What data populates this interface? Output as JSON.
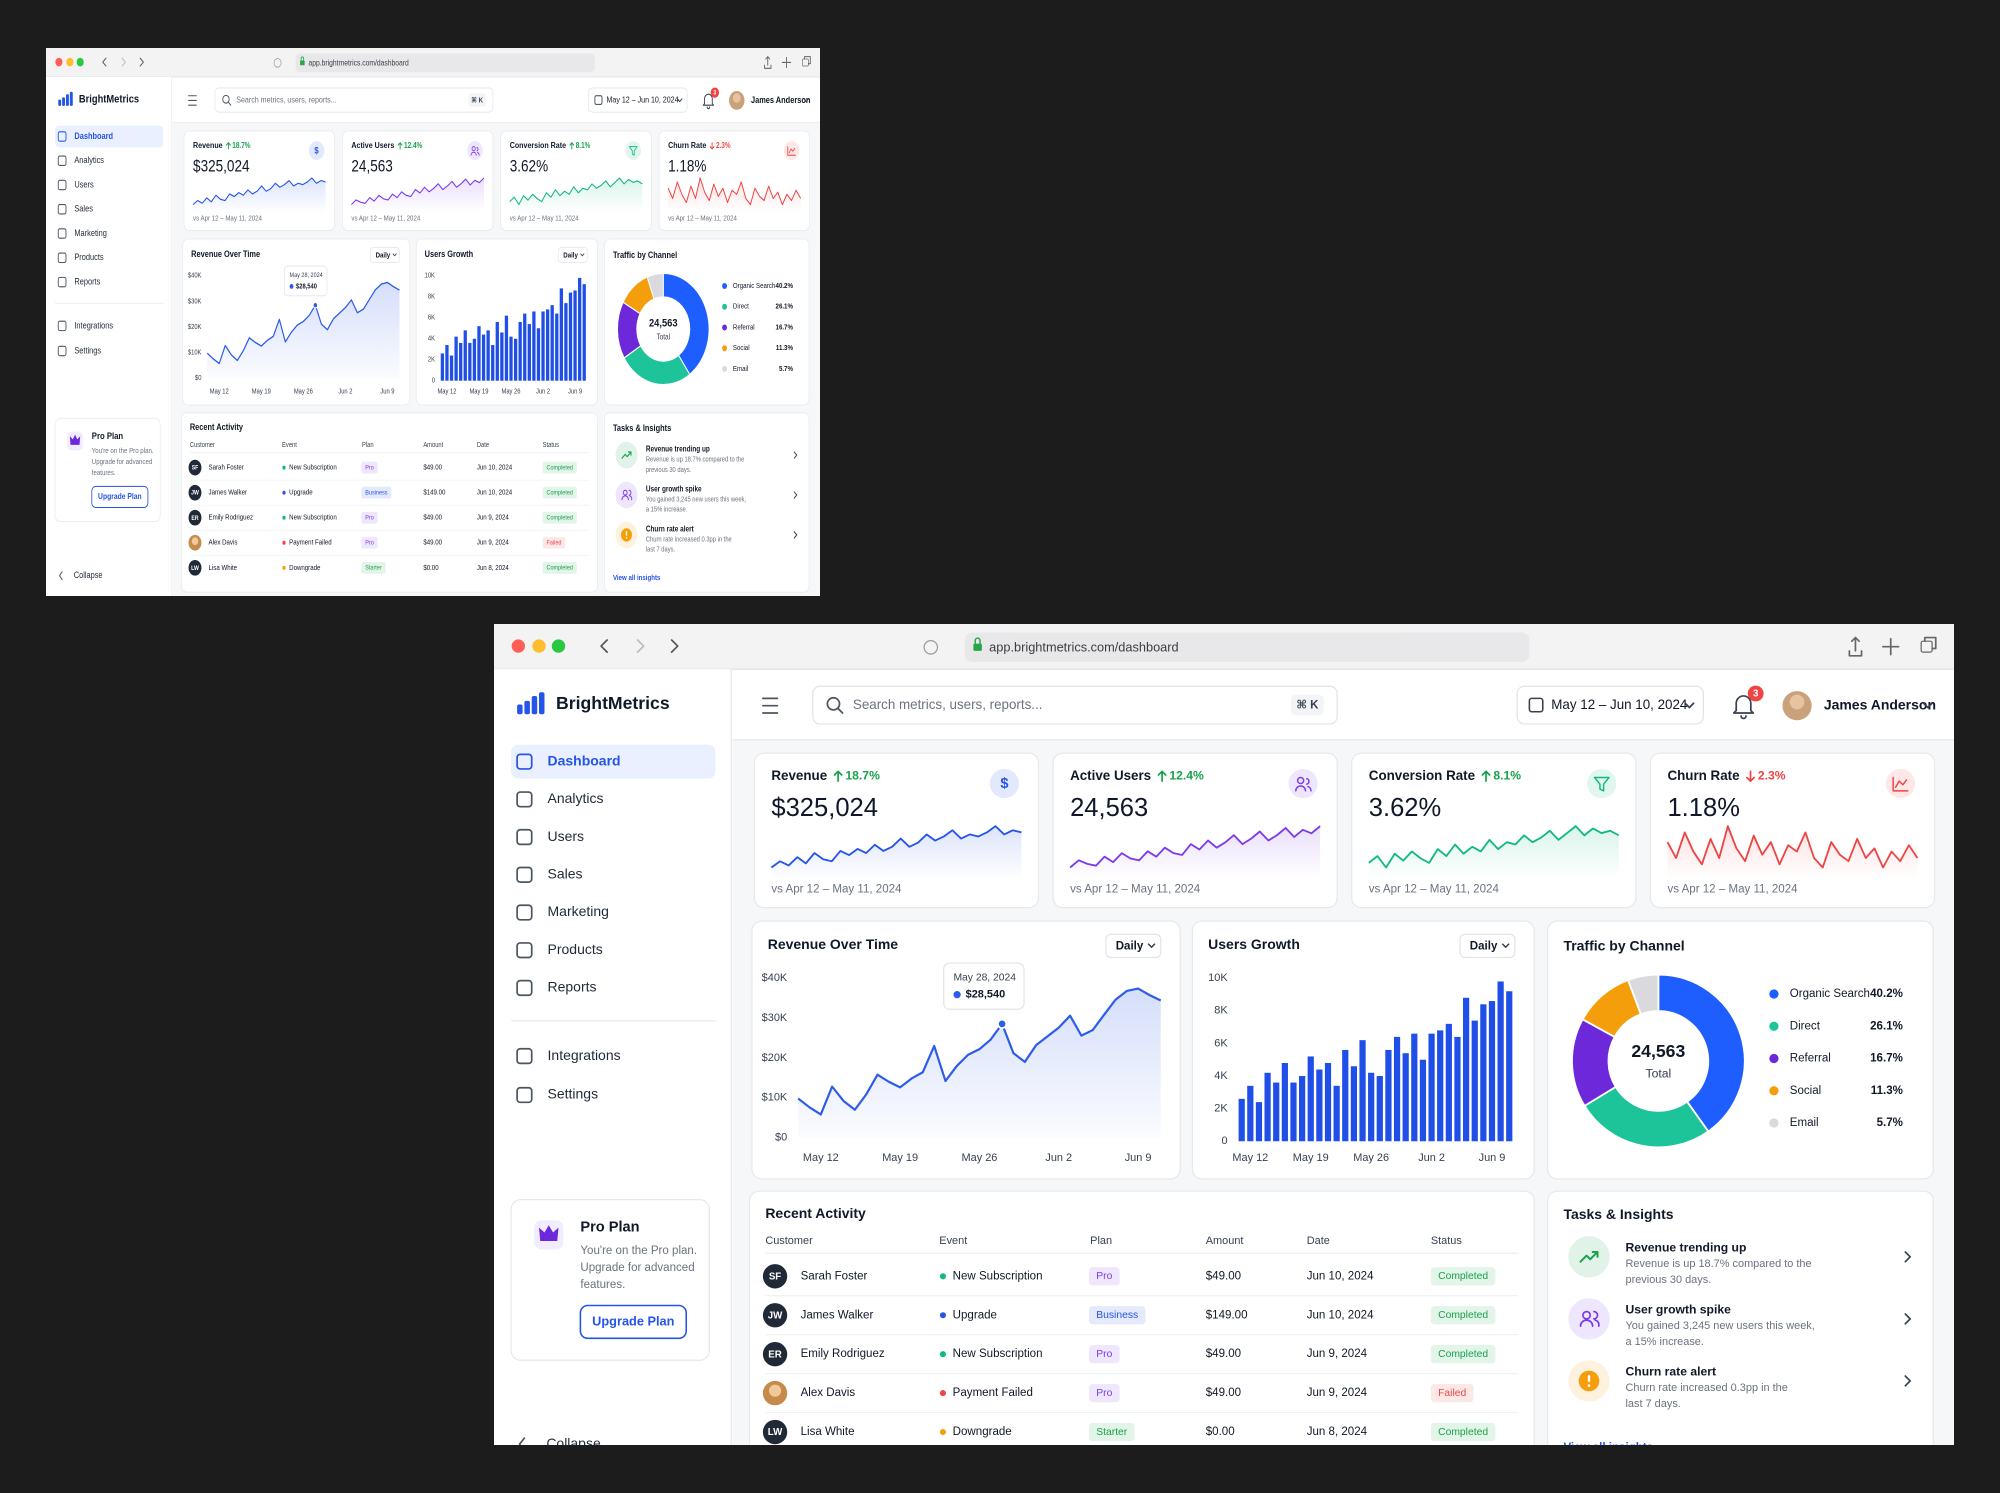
{
  "browser": {
    "url": "app.brightmetrics.com/dashboard"
  },
  "sidebar": {
    "brand": "BrightMetrics",
    "nav": [
      {
        "label": "Dashboard",
        "active": true
      },
      {
        "label": "Analytics"
      },
      {
        "label": "Users"
      },
      {
        "label": "Sales"
      },
      {
        "label": "Marketing"
      },
      {
        "label": "Products"
      },
      {
        "label": "Reports"
      }
    ],
    "nav_bottom": [
      {
        "label": "Integrations"
      },
      {
        "label": "Settings"
      }
    ],
    "plan_card": {
      "title": "Pro Plan",
      "text": [
        "You're on the Pro plan.",
        "Upgrade for advanced",
        "features."
      ],
      "button": "Upgrade Plan"
    },
    "collapse": "Collapse"
  },
  "header": {
    "search_placeholder": "Search metrics, users, reports...",
    "shortcut": "⌘ K",
    "date_range": "May 12 – Jun 10, 2024",
    "notifications": 3,
    "user": "James Anderson"
  },
  "kpis": [
    {
      "label": "Revenue",
      "change": "18.7%",
      "direction": "up",
      "change_color": "#16a34a",
      "value": "$325,024",
      "icon": "$",
      "color": "#2554e8",
      "comparison": "vs Apr 12 – May 11, 2024",
      "trend": [
        42,
        45,
        43,
        47,
        44,
        49,
        46,
        45,
        50,
        48,
        51,
        49,
        53,
        50,
        52,
        56,
        52,
        54,
        58,
        55,
        57,
        60,
        56,
        58,
        57,
        59,
        62,
        58,
        60,
        59
      ]
    },
    {
      "label": "Active Users",
      "change": "12.4%",
      "direction": "up",
      "change_color": "#16a34a",
      "value": "24,563",
      "color": "#7c3aed",
      "comparison": "vs Apr 12 – May 11, 2024",
      "trend": [
        30,
        34,
        32,
        31,
        36,
        33,
        38,
        35,
        34,
        39,
        36,
        41,
        38,
        37,
        43,
        40,
        45,
        41,
        44,
        48,
        43,
        46,
        50,
        45,
        48,
        52,
        47,
        51,
        49,
        53
      ]
    },
    {
      "label": "Conversion Rate",
      "change": "8.1%",
      "direction": "up",
      "change_color": "#16a34a",
      "value": "3.62%",
      "color": "#10b981",
      "comparison": "vs Apr 12 – May 11, 2024",
      "trend": [
        35,
        38,
        33,
        39,
        36,
        40,
        37,
        35,
        41,
        38,
        43,
        39,
        42,
        40,
        45,
        41,
        44,
        43,
        47,
        44,
        46,
        49,
        45,
        48,
        51,
        47,
        50,
        48,
        49,
        47
      ]
    },
    {
      "label": "Churn Rate",
      "change": "2.3%",
      "direction": "down",
      "change_color": "#ef4444",
      "value": "1.18%",
      "color": "#ef4444",
      "comparison": "vs Apr 12 – May 11, 2024",
      "trend": [
        55,
        50,
        58,
        52,
        48,
        56,
        50,
        60,
        53,
        49,
        57,
        51,
        55,
        48,
        54,
        52,
        58,
        50,
        47,
        55,
        51,
        49,
        56,
        50,
        53,
        47,
        52,
        49,
        54,
        50
      ]
    }
  ],
  "chart_data": [
    {
      "type": "line",
      "title": "Revenue Over Time",
      "control": "Daily",
      "color": "#2d5bea",
      "grid": false,
      "categories": [
        null,
        null,
        "May 12",
        null,
        null,
        null,
        null,
        null,
        null,
        "May 19",
        null,
        null,
        null,
        null,
        null,
        null,
        "May 26",
        null,
        null,
        null,
        null,
        null,
        null,
        "Jun 2",
        null,
        null,
        null,
        null,
        null,
        null,
        "Jun 9",
        null,
        null
      ],
      "values": [
        9800,
        7600,
        5800,
        12800,
        9200,
        7000,
        10800,
        15800,
        14000,
        12600,
        14800,
        16400,
        23000,
        14200,
        18000,
        20800,
        22200,
        24600,
        28540,
        21200,
        19000,
        23200,
        25400,
        27600,
        30600,
        25600,
        27000,
        30800,
        34600,
        36800,
        37400,
        35800,
        34400
      ],
      "ylim": [
        0,
        40000
      ],
      "yticks": [
        {
          "value": 0,
          "label": "$0"
        },
        {
          "value": 10000,
          "label": "$10K"
        },
        {
          "value": 20000,
          "label": "$20K"
        },
        {
          "value": 30000,
          "label": "$30K"
        },
        {
          "value": 40000,
          "label": "$40K"
        }
      ],
      "tooltip": {
        "title": "May 28, 2024",
        "value": 28540,
        "value_label": "$28,540"
      }
    },
    {
      "type": "bar",
      "title": "Users Growth",
      "control": "Daily",
      "color": "#1f4fe6",
      "grid": false,
      "categories": [
        null,
        "May 12",
        null,
        null,
        null,
        null,
        null,
        null,
        "May 19",
        null,
        null,
        null,
        null,
        null,
        null,
        "May 26",
        null,
        null,
        null,
        null,
        null,
        null,
        "Jun 2",
        null,
        null,
        null,
        null,
        null,
        null,
        "Jun 9",
        null,
        null
      ],
      "values": [
        2600,
        3400,
        2400,
        4200,
        3600,
        4800,
        3600,
        4000,
        5200,
        4400,
        4800,
        3400,
        5600,
        4600,
        6200,
        4200,
        4000,
        5600,
        6400,
        5400,
        6600,
        5000,
        6600,
        6800,
        7200,
        6400,
        8800,
        7400,
        8400,
        8600,
        9800,
        9200
      ],
      "ylim": [
        0,
        10000
      ],
      "yticks": [
        0,
        {
          "value": 2000,
          "label": "2K"
        },
        {
          "value": 4000,
          "label": "4K"
        },
        {
          "value": 6000,
          "label": "6K"
        },
        {
          "value": 8000,
          "label": "8K"
        },
        {
          "value": 10000,
          "label": "10K"
        }
      ]
    },
    {
      "type": "donut",
      "title": "Traffic by Channel",
      "center_value": "24,563",
      "center_label": "Total",
      "categories": [
        "Organic Search",
        "Direct",
        "Referral",
        "Social",
        "Email"
      ],
      "values": [
        40.2,
        26.1,
        16.7,
        11.3,
        5.7
      ],
      "value_labels": [
        "40.2%",
        "26.1%",
        "16.7%",
        "11.3%",
        "5.7%"
      ],
      "colors": [
        "#1e5eff",
        "#1dc49a",
        "#6d28d9",
        "#f59e0b",
        "#d9d9de"
      ]
    }
  ],
  "recent_activity": {
    "title": "Recent Activity",
    "columns": [
      "Customer",
      "Event",
      "Plan",
      "Amount",
      "Date",
      "Status"
    ],
    "rows": [
      {
        "initials": "SF",
        "customer": "Sarah Foster",
        "event": "New Subscription",
        "event_color": "#10b981",
        "plan": "Pro",
        "plan_color": "#7c3aed",
        "amount": "$49.00",
        "date": "Jun 10, 2024",
        "status": "Completed",
        "status_color": "#16a34a"
      },
      {
        "initials": "JW",
        "customer": "James Walker",
        "event": "Upgrade",
        "event_color": "#2554e8",
        "plan": "Business",
        "plan_color": "#2554e8",
        "amount": "$149.00",
        "date": "Jun 10, 2024",
        "status": "Completed",
        "status_color": "#16a34a"
      },
      {
        "initials": "ER",
        "customer": "Emily Rodriguez",
        "event": "New Subscription",
        "event_color": "#10b981",
        "plan": "Pro",
        "plan_color": "#7c3aed",
        "amount": "$49.00",
        "date": "Jun 9, 2024",
        "status": "Completed",
        "status_color": "#16a34a"
      },
      {
        "customer": "Alex Davis",
        "event": "Payment Failed",
        "event_color": "#ef4444",
        "plan": "Pro",
        "plan_color": "#7c3aed",
        "amount": "$49.00",
        "date": "Jun 9, 2024",
        "status": "Failed",
        "status_color": "#ef4444"
      },
      {
        "initials": "LW",
        "customer": "Lisa White",
        "event": "Downgrade",
        "event_color": "#f59e0b",
        "plan": "Starter",
        "plan_color": "#16a34a",
        "amount": "$0.00",
        "date": "Jun 8, 2024",
        "status": "Completed",
        "status_color": "#16a34a"
      }
    ]
  },
  "tasks": {
    "title": "Tasks & Insights",
    "items": [
      {
        "title": "Revenue trending up",
        "text": [
          "Revenue is up 18.7% compared to the",
          "previous 30 days."
        ],
        "color": "#16a34a"
      },
      {
        "title": "User growth spike",
        "text": [
          "You gained 3,245 new users this week,",
          "a 15% increase."
        ],
        "color": "#7c3aed"
      },
      {
        "title": "Churn rate alert",
        "text": [
          "Churn rate increased 0.3pp in the",
          "last 7 days."
        ],
        "color": "#f59e0b"
      }
    ],
    "link": "View all insights"
  }
}
